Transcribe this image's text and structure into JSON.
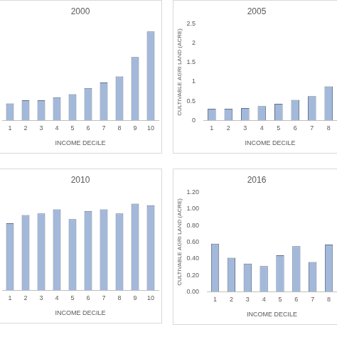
{
  "chart_data": [
    {
      "type": "bar",
      "title": "2000",
      "x_label": "INCOME DECILE",
      "categories": [
        "1",
        "2",
        "3",
        "4",
        "5",
        "6",
        "7",
        "8",
        "9",
        "10"
      ],
      "values": [
        0.44,
        0.52,
        0.52,
        0.6,
        0.68,
        0.84,
        0.98,
        1.14,
        1.64,
        2.3
      ],
      "color": "#a3b9dc",
      "ylim": [
        0,
        2.5
      ],
      "grid": false,
      "tick_labels": "x"
    },
    {
      "type": "bar",
      "title": "2005",
      "x_label": "INCOME DECILE",
      "y_label": "CULTIVABLE AGRI LAND (ACRE)",
      "categories": [
        "1",
        "2",
        "3",
        "4",
        "5",
        "6",
        "7",
        "8"
      ],
      "values": [
        0.3,
        0.3,
        0.32,
        0.37,
        0.43,
        0.53,
        0.63,
        0.88
      ],
      "color": "#a3b9dc",
      "ylim": [
        0,
        2.5
      ],
      "yticks": [
        0,
        0.5,
        1,
        1.5,
        2,
        2.5
      ],
      "grid": false
    },
    {
      "type": "bar",
      "title": "2010",
      "x_label": "INCOME DECILE",
      "categories": [
        "1",
        "2",
        "3",
        "4",
        "5",
        "6",
        "7",
        "8",
        "9",
        "10"
      ],
      "values": [
        0.82,
        0.92,
        0.94,
        0.99,
        0.87,
        0.97,
        0.99,
        0.94,
        1.06,
        1.04
      ],
      "color": "#a3b9dc",
      "ylim": [
        0,
        1.2
      ],
      "grid": false,
      "tick_labels": "x"
    },
    {
      "type": "bar",
      "title": "2016",
      "x_label": "INCOME DECILE",
      "y_label": "CULTIVABLE AGRI LAND (ACRE)",
      "categories": [
        "1",
        "2",
        "3",
        "4",
        "5",
        "6",
        "7",
        "8"
      ],
      "values": [
        0.58,
        0.41,
        0.34,
        0.31,
        0.44,
        0.55,
        0.36,
        0.57
      ],
      "color": "#a3b9dc",
      "ylim": [
        0,
        1.2
      ],
      "yticks": [
        {
          "value": 0,
          "label": "0.00"
        },
        {
          "value": 0.2,
          "label": "0.20"
        },
        {
          "value": 0.4,
          "label": "0.40"
        },
        {
          "value": 0.6,
          "label": "0.60"
        },
        {
          "value": 0.8,
          "label": "0.80"
        },
        {
          "value": 1.0,
          "label": "1.00"
        },
        {
          "value": 1.2,
          "label": "1.20"
        }
      ],
      "grid": false
    }
  ]
}
